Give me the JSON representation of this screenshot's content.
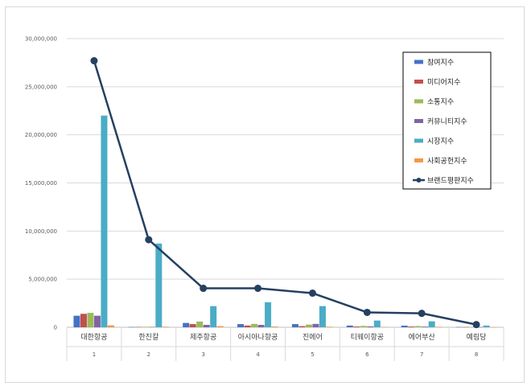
{
  "chart_data": {
    "type": "bar",
    "title": "",
    "xlabel": "",
    "ylabel": "",
    "ylim": [
      0,
      30000000
    ],
    "yticks": [
      0,
      5000000,
      10000000,
      15000000,
      20000000,
      25000000,
      30000000
    ],
    "ytick_labels": [
      "0",
      "5,000,000",
      "10,000,000",
      "15,000,000",
      "20,000,000",
      "25,000,000",
      "30,000,000"
    ],
    "categories": [
      "대한항공",
      "한진칼",
      "제주항공",
      "아시아나항공",
      "진에어",
      "티웨이항공",
      "에어부산",
      "예림당"
    ],
    "category_index": [
      "1",
      "2",
      "3",
      "4",
      "5",
      "6",
      "7",
      "8"
    ],
    "series": [
      {
        "name": "참여지수",
        "kind": "bar",
        "color": "#4472c4",
        "values": [
          1200000,
          30000,
          450000,
          330000,
          330000,
          180000,
          170000,
          30000
        ]
      },
      {
        "name": "미디어지수",
        "kind": "bar",
        "color": "#c0504d",
        "values": [
          1400000,
          40000,
          330000,
          180000,
          120000,
          80000,
          80000,
          20000
        ]
      },
      {
        "name": "소통지수",
        "kind": "bar",
        "color": "#9bbb59",
        "values": [
          1500000,
          50000,
          600000,
          350000,
          280000,
          140000,
          130000,
          40000
        ]
      },
      {
        "name": "커뮤니티지수",
        "kind": "bar",
        "color": "#8064a2",
        "values": [
          1200000,
          40000,
          250000,
          250000,
          350000,
          90000,
          70000,
          20000
        ]
      },
      {
        "name": "시장지수",
        "kind": "bar",
        "color": "#4bacc6",
        "values": [
          22000000,
          8700000,
          2200000,
          2600000,
          2200000,
          700000,
          620000,
          180000
        ]
      },
      {
        "name": "사회공헌지수",
        "kind": "bar",
        "color": "#f79646",
        "values": [
          200000,
          60000,
          120000,
          80000,
          60000,
          40000,
          50000,
          10000
        ]
      },
      {
        "name": "브랜드평판지수",
        "kind": "line",
        "color": "#254061",
        "values": [
          27700000,
          9100000,
          4050000,
          4050000,
          3550000,
          1550000,
          1450000,
          280000
        ]
      }
    ],
    "legend_position": "top-right",
    "grid": true
  }
}
